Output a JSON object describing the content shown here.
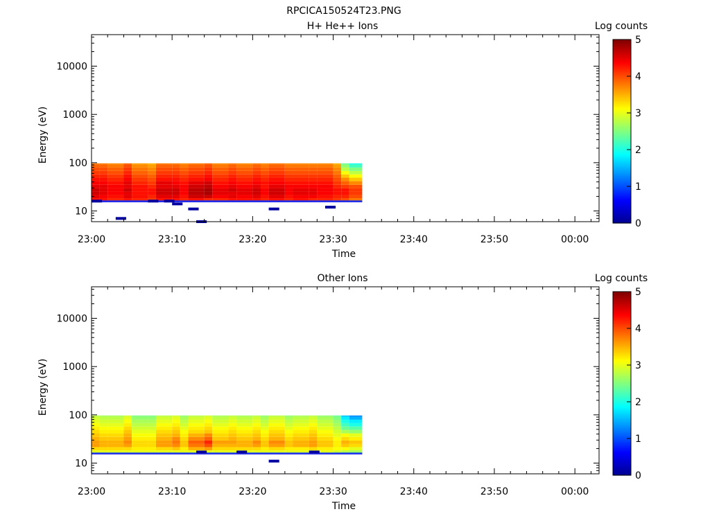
{
  "page_title": "RPCICA150524T23.PNG",
  "colors": {
    "axis": "#000000",
    "background": "#ffffff",
    "colormap": [
      "#00008f",
      "#0000ff",
      "#0080ff",
      "#00ffff",
      "#80ff80",
      "#ffff00",
      "#ff8000",
      "#ff0000",
      "#800000"
    ]
  },
  "chart_data": [
    {
      "type": "heatmap",
      "title": "H+ He++ Ions",
      "xlabel": "Time",
      "ylabel": "Energy (eV)",
      "yscale": "log",
      "xlim": [
        "23:00",
        "00:03"
      ],
      "ylim": [
        6,
        45000
      ],
      "x_ticks": [
        "23:00",
        "23:10",
        "23:20",
        "23:30",
        "23:40",
        "23:50",
        "00:00"
      ],
      "y_ticks": [
        "10",
        "100",
        "1000",
        "10000"
      ],
      "colorbar": {
        "label": "Log counts",
        "range": [
          0,
          5
        ],
        "ticks": [
          "0",
          "1",
          "2",
          "3",
          "4",
          "5"
        ]
      },
      "time_bins": [
        "23:00",
        "23:01",
        "23:02",
        "23:04",
        "23:05",
        "23:07",
        "23:08",
        "23:10",
        "23:11",
        "23:12",
        "23:14",
        "23:15",
        "23:17",
        "23:18",
        "23:20",
        "23:21",
        "23:22",
        "23:24",
        "23:25",
        "23:27",
        "23:28",
        "23:30",
        "23:31",
        "23:32"
      ],
      "energy_bins": [
        17,
        20,
        23,
        27,
        32,
        38,
        45,
        53,
        62,
        73,
        86,
        97
      ],
      "counts": [
        [
          4.3,
          4.3,
          4.2,
          4.3,
          4.2,
          4.1,
          4.3,
          4.3,
          4.2,
          4.3,
          4.2,
          4.2,
          4.3,
          4.3,
          4.3,
          4.2,
          4.3,
          4.2,
          4.3,
          4.2,
          4.2,
          4.1,
          4.0,
          3.8
        ],
        [
          4.5,
          4.4,
          4.3,
          4.5,
          4.3,
          4.2,
          4.5,
          4.5,
          4.3,
          4.6,
          4.6,
          4.4,
          4.5,
          4.4,
          4.5,
          4.3,
          4.5,
          4.3,
          4.4,
          4.4,
          4.3,
          4.2,
          4.2,
          4.0
        ],
        [
          4.6,
          4.5,
          4.4,
          4.5,
          4.3,
          4.3,
          4.6,
          4.6,
          4.4,
          4.7,
          4.8,
          4.5,
          4.5,
          4.5,
          4.6,
          4.4,
          4.6,
          4.4,
          4.5,
          4.5,
          4.4,
          4.3,
          4.3,
          4.1
        ],
        [
          4.6,
          4.5,
          4.4,
          4.6,
          4.3,
          4.3,
          4.6,
          4.6,
          4.4,
          4.7,
          4.8,
          4.5,
          4.6,
          4.5,
          4.6,
          4.4,
          4.6,
          4.4,
          4.5,
          4.5,
          4.4,
          4.3,
          4.3,
          4.1
        ],
        [
          4.5,
          4.5,
          4.4,
          4.5,
          4.3,
          4.2,
          4.5,
          4.5,
          4.4,
          4.6,
          4.7,
          4.4,
          4.5,
          4.4,
          4.5,
          4.3,
          4.5,
          4.4,
          4.4,
          4.4,
          4.4,
          4.2,
          4.1,
          4.0
        ],
        [
          4.4,
          4.4,
          4.3,
          4.5,
          4.2,
          4.1,
          4.5,
          4.4,
          4.3,
          4.5,
          4.6,
          4.3,
          4.4,
          4.3,
          4.4,
          4.3,
          4.4,
          4.3,
          4.3,
          4.3,
          4.3,
          4.1,
          3.9,
          3.7
        ],
        [
          4.3,
          4.3,
          4.2,
          4.4,
          4.1,
          4.0,
          4.3,
          4.3,
          4.2,
          4.3,
          4.4,
          4.2,
          4.3,
          4.2,
          4.3,
          4.2,
          4.3,
          4.2,
          4.2,
          4.2,
          4.2,
          4.0,
          3.7,
          3.4
        ],
        [
          4.2,
          4.2,
          4.1,
          4.3,
          4.0,
          3.9,
          4.2,
          4.2,
          4.1,
          4.2,
          4.3,
          4.1,
          4.2,
          4.1,
          4.2,
          4.1,
          4.2,
          4.1,
          4.1,
          4.1,
          4.1,
          3.9,
          3.4,
          3.1
        ],
        [
          4.1,
          4.1,
          4.0,
          4.2,
          3.9,
          3.8,
          4.1,
          4.1,
          4.0,
          4.1,
          4.2,
          4.0,
          4.1,
          4.0,
          4.1,
          4.0,
          4.1,
          4.0,
          4.0,
          4.0,
          4.0,
          3.8,
          3.1,
          2.8
        ],
        [
          4.0,
          4.0,
          3.9,
          4.1,
          3.8,
          3.7,
          4.0,
          4.0,
          3.9,
          4.0,
          4.1,
          3.9,
          4.0,
          3.9,
          4.0,
          3.9,
          4.0,
          3.9,
          3.9,
          3.9,
          3.9,
          3.7,
          2.8,
          2.5
        ],
        [
          3.9,
          3.9,
          3.8,
          4.0,
          3.7,
          3.6,
          3.9,
          3.9,
          3.8,
          3.9,
          4.0,
          3.8,
          3.9,
          3.8,
          3.9,
          3.8,
          3.9,
          3.8,
          3.8,
          3.8,
          3.8,
          3.6,
          2.6,
          2.2
        ],
        [
          3.8,
          3.8,
          3.7,
          3.9,
          3.6,
          3.5,
          3.8,
          3.8,
          3.7,
          3.8,
          3.9,
          3.7,
          3.8,
          3.7,
          3.8,
          3.7,
          3.8,
          3.7,
          3.7,
          3.7,
          3.7,
          3.5,
          2.4,
          2.0
        ]
      ],
      "sparse_low": [
        {
          "t": "23:00",
          "e": 16,
          "v": 0.1
        },
        {
          "t": "23:03",
          "e": 7,
          "v": 0.1
        },
        {
          "t": "23:07",
          "e": 16,
          "v": 0.1
        },
        {
          "t": "23:09",
          "e": 16,
          "v": 0.1
        },
        {
          "t": "23:10",
          "e": 14,
          "v": 0.1
        },
        {
          "t": "23:12",
          "e": 11,
          "v": 0.1
        },
        {
          "t": "23:13",
          "e": 6,
          "v": 0.1
        },
        {
          "t": "23:22",
          "e": 11,
          "v": 0.1
        },
        {
          "t": "23:29",
          "e": 12,
          "v": 0.1
        }
      ]
    },
    {
      "type": "heatmap",
      "title": "Other Ions",
      "xlabel": "Time",
      "ylabel": "Energy (eV)",
      "yscale": "log",
      "xlim": [
        "23:00",
        "00:03"
      ],
      "ylim": [
        6,
        45000
      ],
      "x_ticks": [
        "23:00",
        "23:10",
        "23:20",
        "23:30",
        "23:40",
        "23:50",
        "00:00"
      ],
      "y_ticks": [
        "10",
        "100",
        "1000",
        "10000"
      ],
      "colorbar": {
        "label": "Log counts",
        "range": [
          0,
          5
        ],
        "ticks": [
          "0",
          "1",
          "2",
          "3",
          "4",
          "5"
        ]
      },
      "time_bins": [
        "23:00",
        "23:01",
        "23:02",
        "23:04",
        "23:05",
        "23:07",
        "23:08",
        "23:10",
        "23:11",
        "23:12",
        "23:14",
        "23:15",
        "23:17",
        "23:18",
        "23:20",
        "23:21",
        "23:22",
        "23:24",
        "23:25",
        "23:27",
        "23:28",
        "23:30",
        "23:31",
        "23:32"
      ],
      "energy_bins": [
        17,
        20,
        23,
        27,
        32,
        38,
        45,
        53,
        62,
        73,
        86,
        97
      ],
      "counts": [
        [
          3.0,
          3.0,
          3.0,
          3.0,
          3.0,
          3.0,
          3.0,
          3.0,
          3.0,
          3.0,
          3.0,
          3.0,
          3.0,
          3.0,
          3.0,
          3.0,
          3.0,
          3.0,
          3.0,
          3.0,
          3.0,
          2.9,
          2.8,
          2.7
        ],
        [
          3.3,
          3.3,
          3.3,
          3.3,
          3.2,
          3.2,
          3.3,
          3.4,
          3.2,
          3.5,
          3.6,
          3.3,
          3.3,
          3.3,
          3.3,
          3.2,
          3.3,
          3.2,
          3.2,
          3.3,
          3.2,
          3.1,
          3.1,
          3.0
        ],
        [
          3.6,
          3.5,
          3.5,
          3.6,
          3.3,
          3.3,
          3.6,
          3.7,
          3.4,
          3.8,
          4.0,
          3.5,
          3.5,
          3.5,
          3.6,
          3.4,
          3.6,
          3.4,
          3.5,
          3.6,
          3.4,
          3.2,
          3.4,
          3.3
        ],
        [
          3.6,
          3.5,
          3.5,
          3.7,
          3.3,
          3.3,
          3.6,
          3.8,
          3.4,
          3.9,
          4.2,
          3.6,
          3.6,
          3.5,
          3.7,
          3.4,
          3.7,
          3.4,
          3.5,
          3.6,
          3.4,
          3.2,
          3.5,
          3.4
        ],
        [
          3.5,
          3.4,
          3.4,
          3.6,
          3.2,
          3.2,
          3.5,
          3.7,
          3.3,
          3.7,
          3.9,
          3.4,
          3.5,
          3.4,
          3.5,
          3.3,
          3.5,
          3.3,
          3.4,
          3.5,
          3.3,
          3.1,
          3.3,
          3.2
        ],
        [
          3.4,
          3.3,
          3.3,
          3.5,
          3.1,
          3.1,
          3.4,
          3.5,
          3.2,
          3.5,
          3.7,
          3.3,
          3.4,
          3.3,
          3.4,
          3.2,
          3.4,
          3.2,
          3.3,
          3.4,
          3.2,
          3.0,
          3.1,
          3.0
        ],
        [
          3.3,
          3.2,
          3.2,
          3.4,
          3.0,
          3.0,
          3.3,
          3.4,
          3.1,
          3.3,
          3.4,
          3.2,
          3.3,
          3.2,
          3.3,
          3.1,
          3.3,
          3.1,
          3.2,
          3.3,
          3.1,
          2.9,
          2.7,
          2.6
        ],
        [
          3.2,
          3.1,
          3.1,
          3.3,
          2.9,
          2.9,
          3.2,
          3.3,
          3.0,
          3.2,
          3.3,
          3.1,
          3.2,
          3.1,
          3.2,
          3.0,
          3.2,
          3.0,
          3.1,
          3.2,
          3.0,
          2.8,
          2.4,
          2.3
        ],
        [
          3.1,
          3.0,
          3.0,
          3.2,
          2.8,
          2.8,
          3.1,
          3.2,
          2.9,
          3.1,
          3.2,
          3.0,
          3.1,
          3.0,
          3.1,
          2.9,
          3.1,
          2.9,
          3.0,
          3.1,
          2.9,
          2.7,
          2.2,
          2.0
        ],
        [
          3.0,
          2.9,
          2.9,
          3.1,
          2.7,
          2.7,
          3.0,
          3.1,
          2.8,
          3.0,
          3.1,
          2.9,
          3.0,
          2.9,
          3.0,
          2.8,
          3.0,
          2.8,
          2.9,
          3.0,
          2.8,
          2.6,
          2.0,
          1.8
        ],
        [
          2.9,
          2.8,
          2.8,
          3.0,
          2.6,
          2.6,
          2.9,
          3.0,
          2.7,
          2.9,
          3.0,
          2.8,
          2.9,
          2.8,
          2.9,
          2.7,
          2.9,
          2.7,
          2.8,
          2.9,
          2.7,
          2.5,
          1.8,
          1.5
        ],
        [
          2.8,
          2.7,
          2.7,
          2.9,
          2.5,
          2.5,
          2.8,
          2.9,
          2.6,
          2.8,
          2.9,
          2.7,
          2.8,
          2.7,
          2.8,
          2.6,
          2.8,
          2.6,
          2.7,
          2.8,
          2.6,
          2.4,
          1.6,
          1.3
        ]
      ],
      "sparse_low": [
        {
          "t": "23:13",
          "e": 17,
          "v": 0.1
        },
        {
          "t": "23:18",
          "e": 17,
          "v": 0.1
        },
        {
          "t": "23:22",
          "e": 11,
          "v": 0.1
        },
        {
          "t": "23:27",
          "e": 17,
          "v": 0.1
        }
      ]
    }
  ]
}
